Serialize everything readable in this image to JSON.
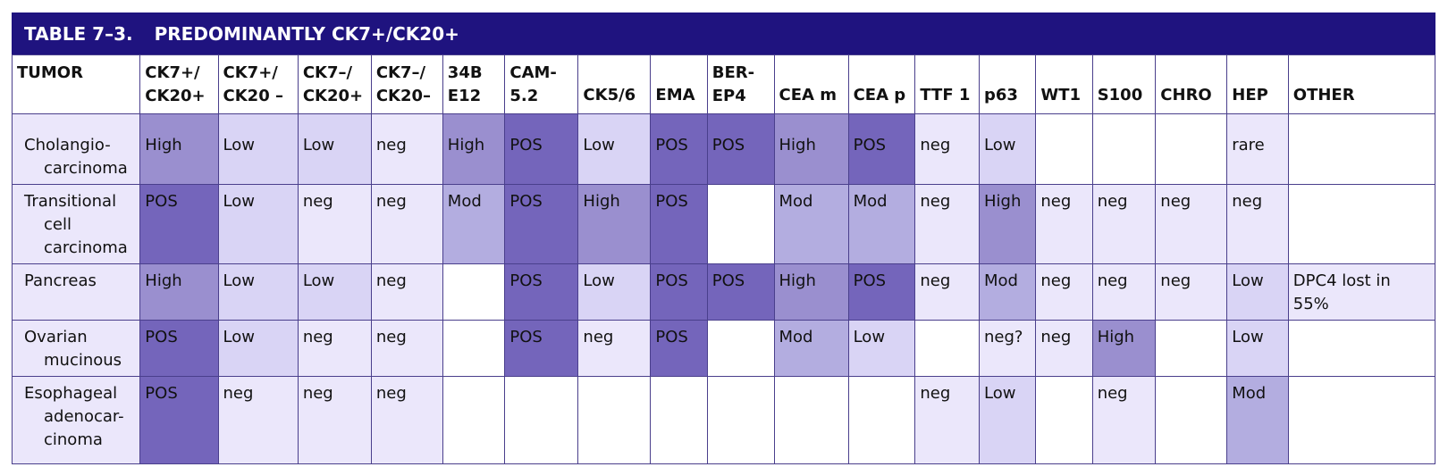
{
  "title": {
    "number": "TABLE 7–3.",
    "text": "PREDOMINANTLY CK7+/CK20+"
  },
  "headers": [
    {
      "lines": [
        "TUMOR"
      ],
      "align": "top"
    },
    {
      "lines": [
        "CK7+/",
        "CK20+"
      ],
      "align": "top"
    },
    {
      "lines": [
        "CK7+/",
        "CK20 –"
      ],
      "align": "top"
    },
    {
      "lines": [
        "CK7–/",
        "CK20+"
      ],
      "align": "top"
    },
    {
      "lines": [
        "CK7–/",
        "CK20–"
      ],
      "align": "top"
    },
    {
      "lines": [
        "34B",
        "E12"
      ],
      "align": "top"
    },
    {
      "lines": [
        "CAM-",
        "5.2"
      ],
      "align": "top"
    },
    {
      "lines": [
        "CK5/6"
      ],
      "align": "bottom"
    },
    {
      "lines": [
        "EMA"
      ],
      "align": "bottom"
    },
    {
      "lines": [
        "BER-",
        "EP4"
      ],
      "align": "top"
    },
    {
      "lines": [
        "CEA m"
      ],
      "align": "bottom"
    },
    {
      "lines": [
        "CEA p"
      ],
      "align": "bottom"
    },
    {
      "lines": [
        "TTF 1"
      ],
      "align": "bottom"
    },
    {
      "lines": [
        "p63"
      ],
      "align": "bottom"
    },
    {
      "lines": [
        "WT1"
      ],
      "align": "bottom"
    },
    {
      "lines": [
        "S100"
      ],
      "align": "bottom"
    },
    {
      "lines": [
        "CHRO"
      ],
      "align": "bottom"
    },
    {
      "lines": [
        "HEP"
      ],
      "align": "bottom"
    },
    {
      "lines": [
        "OTHER"
      ],
      "align": "bottom"
    }
  ],
  "shading_levels": {
    "white": "#ffffff",
    "1": "#ebe7fb",
    "2": "#d9d4f5",
    "3": "#b3ade0",
    "4": "#9a8fcf",
    "5": "#7465bb"
  },
  "rows": [
    {
      "tumor": [
        "Cholangio-",
        "carcinoma"
      ],
      "cells": [
        {
          "v": "High",
          "s": "4"
        },
        {
          "v": "Low",
          "s": "2"
        },
        {
          "v": "Low",
          "s": "2"
        },
        {
          "v": "neg",
          "s": "1"
        },
        {
          "v": "High",
          "s": "4"
        },
        {
          "v": "POS",
          "s": "5"
        },
        {
          "v": "Low",
          "s": "2"
        },
        {
          "v": "POS",
          "s": "5"
        },
        {
          "v": "POS",
          "s": "5"
        },
        {
          "v": "High",
          "s": "4"
        },
        {
          "v": "POS",
          "s": "5"
        },
        {
          "v": "neg",
          "s": "1"
        },
        {
          "v": "Low",
          "s": "2"
        },
        {
          "v": "",
          "s": "white"
        },
        {
          "v": "",
          "s": "white"
        },
        {
          "v": "",
          "s": "white"
        },
        {
          "v": "rare",
          "s": "1"
        },
        {
          "v": "",
          "s": "white"
        }
      ]
    },
    {
      "tumor": [
        "Transitional",
        "cell",
        "carcinoma"
      ],
      "cells": [
        {
          "v": "POS",
          "s": "5"
        },
        {
          "v": "Low",
          "s": "2"
        },
        {
          "v": "neg",
          "s": "1"
        },
        {
          "v": "neg",
          "s": "1"
        },
        {
          "v": "Mod",
          "s": "3"
        },
        {
          "v": "POS",
          "s": "5"
        },
        {
          "v": "High",
          "s": "4"
        },
        {
          "v": "POS",
          "s": "5"
        },
        {
          "v": "",
          "s": "white"
        },
        {
          "v": "Mod",
          "s": "3"
        },
        {
          "v": "Mod",
          "s": "3"
        },
        {
          "v": "neg",
          "s": "1"
        },
        {
          "v": "High",
          "s": "4"
        },
        {
          "v": "neg",
          "s": "1"
        },
        {
          "v": "neg",
          "s": "1"
        },
        {
          "v": "neg",
          "s": "1"
        },
        {
          "v": "neg",
          "s": "1"
        },
        {
          "v": "",
          "s": "white"
        }
      ]
    },
    {
      "tumor": [
        "Pancreas"
      ],
      "cells": [
        {
          "v": "High",
          "s": "4"
        },
        {
          "v": "Low",
          "s": "2"
        },
        {
          "v": "Low",
          "s": "2"
        },
        {
          "v": "neg",
          "s": "1"
        },
        {
          "v": "",
          "s": "white"
        },
        {
          "v": "POS",
          "s": "5"
        },
        {
          "v": "Low",
          "s": "2"
        },
        {
          "v": "POS",
          "s": "5"
        },
        {
          "v": "POS",
          "s": "5"
        },
        {
          "v": "High",
          "s": "4"
        },
        {
          "v": "POS",
          "s": "5"
        },
        {
          "v": "neg",
          "s": "1"
        },
        {
          "v": "Mod",
          "s": "3"
        },
        {
          "v": "neg",
          "s": "1"
        },
        {
          "v": "neg",
          "s": "1"
        },
        {
          "v": "neg",
          "s": "1"
        },
        {
          "v": "Low",
          "s": "2"
        },
        {
          "v": "DPC4 lost in 55%",
          "s": "1"
        }
      ]
    },
    {
      "tumor": [
        "Ovarian",
        "mucinous"
      ],
      "cells": [
        {
          "v": "POS",
          "s": "5"
        },
        {
          "v": "Low",
          "s": "2"
        },
        {
          "v": "neg",
          "s": "1"
        },
        {
          "v": "neg",
          "s": "1"
        },
        {
          "v": "",
          "s": "white"
        },
        {
          "v": "POS",
          "s": "5"
        },
        {
          "v": "neg",
          "s": "1"
        },
        {
          "v": "POS",
          "s": "5"
        },
        {
          "v": "",
          "s": "white"
        },
        {
          "v": "Mod",
          "s": "3"
        },
        {
          "v": "Low",
          "s": "2"
        },
        {
          "v": "",
          "s": "white"
        },
        {
          "v": "neg?",
          "s": "1"
        },
        {
          "v": "neg",
          "s": "1"
        },
        {
          "v": "High",
          "s": "4"
        },
        {
          "v": "",
          "s": "white"
        },
        {
          "v": "Low",
          "s": "2"
        },
        {
          "v": "",
          "s": "white"
        }
      ]
    },
    {
      "tumor": [
        "Esophageal",
        "adenocar-",
        "cinoma"
      ],
      "cells": [
        {
          "v": "POS",
          "s": "5"
        },
        {
          "v": "neg",
          "s": "1"
        },
        {
          "v": "neg",
          "s": "1"
        },
        {
          "v": "neg",
          "s": "1"
        },
        {
          "v": "",
          "s": "white"
        },
        {
          "v": "",
          "s": "white"
        },
        {
          "v": "",
          "s": "white"
        },
        {
          "v": "",
          "s": "white"
        },
        {
          "v": "",
          "s": "white"
        },
        {
          "v": "",
          "s": "white"
        },
        {
          "v": "",
          "s": "white"
        },
        {
          "v": "neg",
          "s": "1"
        },
        {
          "v": "Low",
          "s": "2"
        },
        {
          "v": "",
          "s": "white"
        },
        {
          "v": "neg",
          "s": "1"
        },
        {
          "v": "",
          "s": "white"
        },
        {
          "v": "Mod",
          "s": "3"
        },
        {
          "v": "",
          "s": "white"
        }
      ]
    }
  ]
}
